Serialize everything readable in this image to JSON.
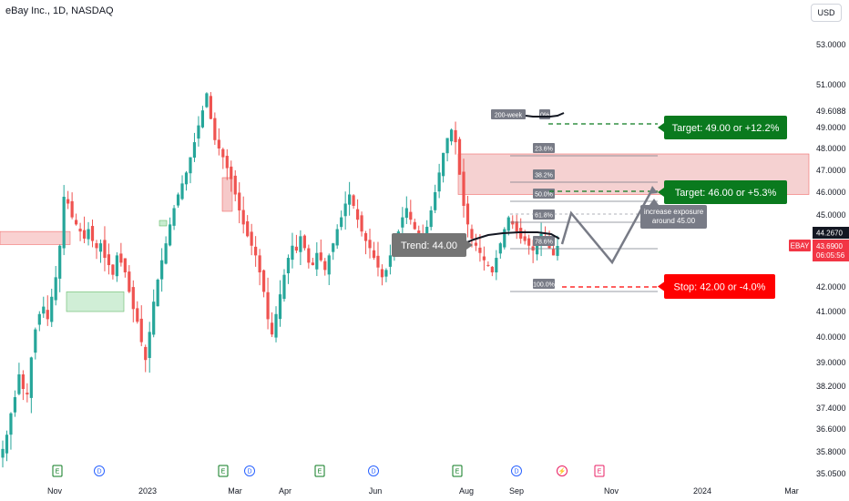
{
  "header": {
    "title": "eBay Inc., 1D, NASDAQ",
    "currency_button": "USD"
  },
  "price_axis": {
    "ticks": [
      "53.0000",
      "51.0000",
      "49.0000",
      "48.0000",
      "47.0000",
      "46.0000",
      "45.0000",
      "42.0000",
      "41.0000",
      "40.0000",
      "39.0000",
      "38.2000",
      "37.4000",
      "36.6000",
      "35.8000",
      "35.0500"
    ],
    "ticks_value": [
      53.0,
      51.0,
      49.0,
      48.0,
      47.0,
      46.0,
      45.0,
      42.0,
      41.0,
      40.0,
      39.0,
      38.2,
      37.4,
      36.6,
      35.8,
      35.05
    ],
    "tag_49": "49.6088",
    "tag_44": "44.2670",
    "ticker_tag": "EBAY",
    "last_price": "43.6900",
    "countdown": "06:05:56",
    "colors": {
      "up": "#26a69a",
      "down": "#ef5350",
      "last": "#f23645"
    }
  },
  "time_axis": {
    "labels": [
      "Nov",
      "2023",
      "Mar",
      "Apr",
      "Jun",
      "Aug",
      "Sep",
      "Nov",
      "2024",
      "Mar"
    ]
  },
  "fibonacci": {
    "levels": [
      "23.6%",
      "38.2%",
      "50.0%",
      "61.8%",
      "78.6%",
      "100.0%"
    ],
    "extra": [
      "200-week",
      "0%"
    ]
  },
  "annotations": {
    "trend": "Trend: 44.00",
    "target1": "Target: 49.00 or +12.2%",
    "target2": "Target: 46.00 or +5.3%",
    "stop": "Stop: 42.00 or -4.0%",
    "note_line1": "increase exposure",
    "note_line2": "around 45.00",
    "colors": {
      "target": "#0a7a1e",
      "stop": "#ff0000",
      "trend": "#757575"
    }
  },
  "events": [
    {
      "letter": "E",
      "kind": "earnings"
    },
    {
      "letter": "D",
      "kind": "dividend"
    },
    {
      "letter": "E",
      "kind": "earnings"
    },
    {
      "letter": "D",
      "kind": "dividend"
    },
    {
      "letter": "E",
      "kind": "earnings"
    },
    {
      "letter": "D",
      "kind": "dividend"
    },
    {
      "letter": "E",
      "kind": "earnings"
    },
    {
      "letter": "D",
      "kind": "dividend"
    },
    {
      "letter": "⚡",
      "kind": "split"
    },
    {
      "letter": "E",
      "kind": "earnings-upcoming"
    }
  ],
  "chart_data": {
    "type": "candlestick",
    "symbol": "EBAY",
    "interval": "1D",
    "ylim": [
      35.0,
      53.5
    ],
    "x_labels": [
      "Nov",
      "2023",
      "Mar",
      "Apr",
      "Jun",
      "Aug",
      "Sep",
      "Nov",
      "2024",
      "Mar"
    ],
    "close_series": [
      35.9,
      36.4,
      37.2,
      37.8,
      38.6,
      38.1,
      37.9,
      39.2,
      40.3,
      40.9,
      41.2,
      40.7,
      41.6,
      42.4,
      43.7,
      45.8,
      45.5,
      44.9,
      44.6,
      44.3,
      44.0,
      44.4,
      43.9,
      43.6,
      43.8,
      43.2,
      42.9,
      42.5,
      43.3,
      43.0,
      42.6,
      41.8,
      41.1,
      40.6,
      39.8,
      39.1,
      40.2,
      41.4,
      42.3,
      43.1,
      43.8,
      44.6,
      45.3,
      45.9,
      46.4,
      46.9,
      47.6,
      48.3,
      49.1,
      49.8,
      50.6,
      49.4,
      48.4,
      48.0,
      47.6,
      47.1,
      46.6,
      45.9,
      45.2,
      44.6,
      44.1,
      43.7,
      43.3,
      42.6,
      41.8,
      40.7,
      40.1,
      40.9,
      41.7,
      42.5,
      43.2,
      43.7,
      43.5,
      44.1,
      43.6,
      43.0,
      42.9,
      43.4,
      43.1,
      42.7,
      43.3,
      43.8,
      44.4,
      44.9,
      45.5,
      45.9,
      45.4,
      44.8,
      44.3,
      43.9,
      43.6,
      43.2,
      42.8,
      42.4,
      42.7,
      43.3,
      43.8,
      44.3,
      44.9,
      45.3,
      44.8,
      44.4,
      44.1,
      43.8,
      44.5,
      45.2,
      46.0,
      46.9,
      47.8,
      48.5,
      48.9,
      48.3,
      46.8,
      45.4,
      44.6,
      44.0,
      43.7,
      43.4,
      43.1,
      42.9,
      42.6,
      43.2,
      43.8,
      44.4,
      44.9,
      44.6,
      44.3,
      44.0,
      43.9,
      43.7,
      43.5,
      43.8,
      44.2,
      43.9,
      43.6,
      43.3,
      43.69
    ],
    "zones": [
      {
        "from": 43.75,
        "to": 44.3,
        "color": "#f8c9c9",
        "label": "supply-left"
      },
      {
        "from": 41.0,
        "to": 41.8,
        "color": "#c8ecd0",
        "label": "demand-left"
      },
      {
        "from": 45.9,
        "to": 47.75,
        "color": "#f4c9c9",
        "label": "supply-right"
      }
    ],
    "targets": [
      49.0,
      46.0
    ],
    "stop": 42.0,
    "trend": 44.0
  }
}
